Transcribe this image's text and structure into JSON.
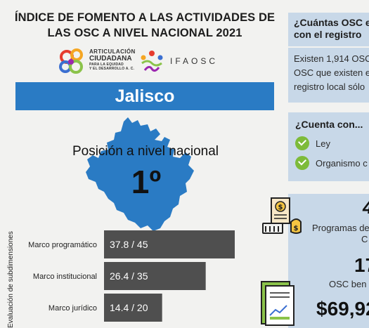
{
  "header": {
    "title_line1": "ÍNDICE DE FOMENTO A LAS ACTIVIDADES DE",
    "title_line2": "LAS OSC A NIVEL NACIONAL 2021"
  },
  "logos": {
    "articulacion": {
      "line1": "ARTICULACIÓN",
      "line2": "CIUDADANA",
      "line3": "PARA LA EQUIDAD",
      "line4": "Y EL DESARROLLO A. C."
    },
    "ifaosc": {
      "text": "IFAOSC"
    }
  },
  "state": {
    "name": "Jalisco",
    "position_label": "Posición a nivel nacional",
    "position_value": "1º"
  },
  "chart_data": {
    "type": "bar",
    "orientation": "horizontal",
    "ylabel": "Evaluación de subdimensiones",
    "categories": [
      "Marco programático",
      "Marco institucional",
      "Marco jurídico"
    ],
    "series": [
      {
        "values": [
          37.8,
          26.4,
          14.4
        ],
        "max": [
          45,
          35,
          20
        ]
      }
    ],
    "data_labels": [
      "37.8 / 45",
      "26.4 / 35",
      "14.4 / 20"
    ],
    "bar_color": "#4f4f4f"
  },
  "cards": {
    "osc_count": {
      "title_line1": "¿Cuántas OSC e",
      "title_line2": "con el registro",
      "text_line1": "Existen 1,914 OSC",
      "text_line2": "OSC que existen e",
      "text_line3": "registro local sólo"
    },
    "cuenta_con": {
      "title": "¿Cuenta con...",
      "items": [
        "Ley",
        "Organismo c"
      ],
      "check_color": "#7dbb3a"
    },
    "programs": {
      "big_top": "4",
      "text_line1": "Programas de",
      "text_line2": "C",
      "count": "17",
      "count_label": "OSC ben",
      "amount": "$69,92"
    }
  },
  "colors": {
    "banner": "#2a7bc4",
    "card_bg": "#c8d8e8",
    "map_fill": "#2a7bc4",
    "page_bg": "#f2f2f0"
  }
}
